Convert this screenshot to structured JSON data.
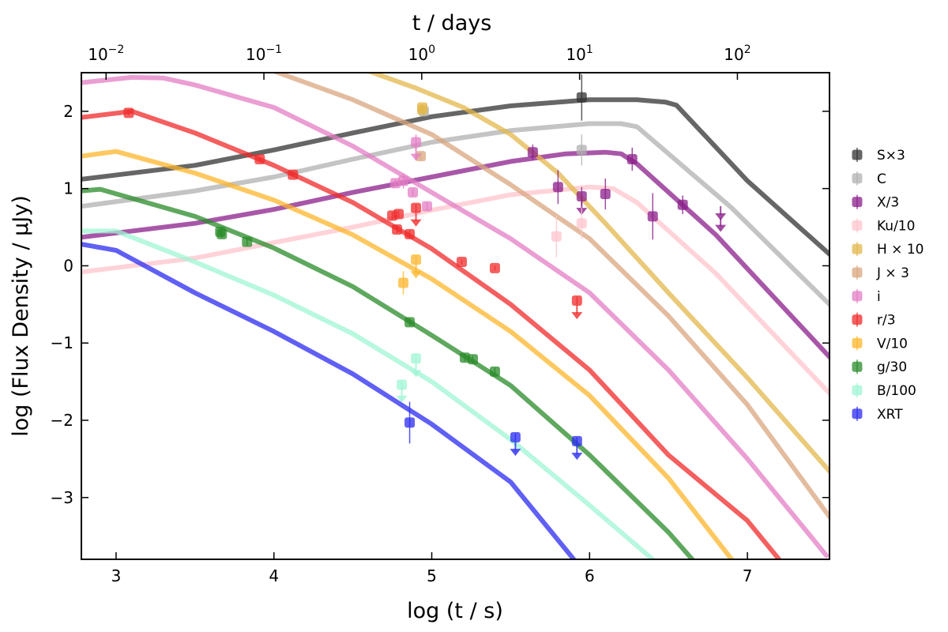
{
  "chart_data": {
    "type": "line",
    "xlabel": "log (t / s)",
    "ylabel": "log (Flux Density / μJy)",
    "top_xlabel": "t / days",
    "xlim": [
      2.78,
      7.52
    ],
    "ylim": [
      -3.8,
      2.5
    ],
    "x_ticks": [
      3,
      4,
      5,
      6,
      7
    ],
    "y_ticks": [
      -3,
      -2,
      -1,
      0,
      1,
      2
    ],
    "x_tick_labels": [
      "3",
      "4",
      "5",
      "6",
      "7"
    ],
    "y_tick_labels": [
      "−3",
      "−2",
      "−1",
      "0",
      "1",
      "2"
    ],
    "top_ticks": [
      {
        "value_days": 0.01,
        "base": "10",
        "exp": "−2"
      },
      {
        "value_days": 0.1,
        "base": "10",
        "exp": "−1"
      },
      {
        "value_days": 1,
        "base": "10",
        "exp": "0"
      },
      {
        "value_days": 10,
        "base": "10",
        "exp": "1"
      },
      {
        "value_days": 100,
        "base": "10",
        "exp": "2"
      }
    ],
    "legend_position": "outside-right",
    "series": [
      {
        "name": "S×3",
        "color": "#333333",
        "model": [
          [
            2.78,
            1.12
          ],
          [
            3.5,
            1.3
          ],
          [
            4.0,
            1.5
          ],
          [
            4.5,
            1.72
          ],
          [
            5.0,
            1.93
          ],
          [
            5.5,
            2.07
          ],
          [
            6.0,
            2.15
          ],
          [
            6.3,
            2.15
          ],
          [
            6.48,
            2.12
          ],
          [
            6.55,
            2.08
          ],
          [
            7.0,
            1.1
          ],
          [
            7.52,
            0.15
          ]
        ],
        "points": [
          {
            "x": 5.95,
            "y": 2.18,
            "err": 0.3
          }
        ]
      },
      {
        "name": "C",
        "color": "#b0b0b0",
        "model": [
          [
            2.78,
            0.77
          ],
          [
            3.5,
            0.97
          ],
          [
            4.0,
            1.15
          ],
          [
            4.5,
            1.38
          ],
          [
            5.0,
            1.6
          ],
          [
            5.5,
            1.75
          ],
          [
            6.0,
            1.84
          ],
          [
            6.2,
            1.84
          ],
          [
            6.3,
            1.8
          ],
          [
            6.9,
            0.75
          ],
          [
            7.52,
            -0.5
          ]
        ],
        "points": [
          {
            "x": 4.95,
            "y": 2.0,
            "err": 0.05
          },
          {
            "x": 5.95,
            "y": 1.5,
            "err": 0.2
          }
        ]
      },
      {
        "name": "X/3",
        "color": "#8b1f8b",
        "model": [
          [
            2.78,
            0.37
          ],
          [
            3.5,
            0.55
          ],
          [
            4.0,
            0.73
          ],
          [
            4.5,
            0.95
          ],
          [
            5.0,
            1.15
          ],
          [
            5.5,
            1.35
          ],
          [
            5.85,
            1.45
          ],
          [
            6.1,
            1.47
          ],
          [
            6.2,
            1.45
          ],
          [
            6.3,
            1.32
          ],
          [
            6.8,
            0.4
          ],
          [
            7.52,
            -1.18
          ]
        ],
        "points": [
          {
            "x": 5.64,
            "y": 1.47,
            "err": 0.1
          },
          {
            "x": 5.8,
            "y": 1.02,
            "err": 0.22
          },
          {
            "x": 5.95,
            "y": 0.9,
            "err": 0.12
          },
          {
            "x": 5.95,
            "y": 0.75,
            "upper": true
          },
          {
            "x": 6.1,
            "y": 0.93,
            "err": 0.2
          },
          {
            "x": 6.27,
            "y": 1.38,
            "err": 0.15
          },
          {
            "x": 6.4,
            "y": 0.64,
            "err": 0.3
          },
          {
            "x": 6.59,
            "y": 0.79,
            "err": 0.12
          },
          {
            "x": 6.83,
            "y": 0.68,
            "upper": true
          },
          {
            "x": 6.83,
            "y": 0.53,
            "upper": true
          }
        ]
      },
      {
        "name": "Ku/10",
        "color": "#ffc4cc",
        "model": [
          [
            2.78,
            -0.08
          ],
          [
            3.5,
            0.1
          ],
          [
            4.0,
            0.3
          ],
          [
            4.5,
            0.5
          ],
          [
            5.0,
            0.72
          ],
          [
            5.5,
            0.92
          ],
          [
            6.0,
            1.02
          ],
          [
            6.15,
            1.0
          ],
          [
            6.3,
            0.82
          ],
          [
            6.8,
            -0.1
          ],
          [
            7.52,
            -1.65
          ]
        ],
        "points": [
          {
            "x": 5.79,
            "y": 0.38,
            "err": 0.27
          },
          {
            "x": 5.95,
            "y": 0.55,
            "err": 0.2
          }
        ]
      },
      {
        "name": "H × 10",
        "color": "#e3b74b",
        "model": [
          [
            4.6,
            2.52
          ],
          [
            4.9,
            2.3
          ],
          [
            5.2,
            2.05
          ],
          [
            5.5,
            1.7
          ],
          [
            5.8,
            1.2
          ],
          [
            6.1,
            0.55
          ],
          [
            6.5,
            -0.35
          ],
          [
            7.0,
            -1.45
          ],
          [
            7.52,
            -2.66
          ]
        ],
        "points": [
          {
            "x": 4.94,
            "y": 2.02,
            "err": 0.07
          },
          {
            "x": 4.94,
            "y": 2.05,
            "err": 0.05
          }
        ]
      },
      {
        "name": "J × 3",
        "color": "#d9a57f",
        "model": [
          [
            4.0,
            2.52
          ],
          [
            4.5,
            2.15
          ],
          [
            5.0,
            1.7
          ],
          [
            5.5,
            1.05
          ],
          [
            6.0,
            0.35
          ],
          [
            6.5,
            -0.65
          ],
          [
            7.0,
            -1.8
          ],
          [
            7.52,
            -3.25
          ]
        ],
        "points": [
          {
            "x": 4.93,
            "y": 1.42,
            "err": 0.05
          }
        ]
      },
      {
        "name": "i",
        "color": "#e37ec4",
        "model": [
          [
            2.78,
            2.37
          ],
          [
            3.1,
            2.44
          ],
          [
            3.3,
            2.43
          ],
          [
            3.5,
            2.34
          ],
          [
            4.0,
            2.05
          ],
          [
            4.5,
            1.55
          ],
          [
            5.0,
            0.95
          ],
          [
            5.5,
            0.35
          ],
          [
            6.0,
            -0.35
          ],
          [
            6.5,
            -1.35
          ],
          [
            7.0,
            -2.5
          ],
          [
            7.5,
            -3.75
          ]
        ],
        "points": [
          {
            "x": 4.77,
            "y": 1.07,
            "err": 0.05
          },
          {
            "x": 4.82,
            "y": 1.1,
            "err": 0.1
          },
          {
            "x": 4.88,
            "y": 0.95,
            "err": 0.05
          },
          {
            "x": 4.9,
            "y": 1.6,
            "err": 0.1
          },
          {
            "x": 4.9,
            "y": 1.45,
            "upper": true
          },
          {
            "x": 4.97,
            "y": 0.77,
            "err": 0.05
          }
        ]
      },
      {
        "name": "r/3",
        "color": "#f02a2a",
        "model": [
          [
            2.78,
            1.92
          ],
          [
            3.1,
            2.0
          ],
          [
            3.5,
            1.72
          ],
          [
            4.0,
            1.3
          ],
          [
            4.5,
            0.82
          ],
          [
            5.0,
            0.22
          ],
          [
            5.5,
            -0.5
          ],
          [
            6.0,
            -1.35
          ],
          [
            6.5,
            -2.45
          ],
          [
            7.0,
            -3.3
          ],
          [
            7.2,
            -3.8
          ]
        ],
        "points": [
          {
            "x": 3.08,
            "y": 1.98,
            "err": 0.03
          },
          {
            "x": 3.91,
            "y": 1.38,
            "err": 0.03
          },
          {
            "x": 4.12,
            "y": 1.18,
            "err": 0.03
          },
          {
            "x": 4.75,
            "y": 0.65,
            "err": 0.05
          },
          {
            "x": 4.79,
            "y": 0.67,
            "err": 0.05
          },
          {
            "x": 4.78,
            "y": 0.47,
            "err": 0.05
          },
          {
            "x": 4.86,
            "y": 0.41,
            "err": 0.05
          },
          {
            "x": 4.9,
            "y": 0.75,
            "err": 0.05
          },
          {
            "x": 4.9,
            "y": 0.6,
            "upper": true
          },
          {
            "x": 5.19,
            "y": 0.05,
            "err": 0.03
          },
          {
            "x": 5.4,
            "y": -0.03,
            "err": 0.03
          },
          {
            "x": 5.92,
            "y": -0.45,
            "err": 0.05
          },
          {
            "x": 5.92,
            "y": -0.6,
            "upper": true
          }
        ]
      },
      {
        "name": "V/10",
        "color": "#fdb62b",
        "model": [
          [
            2.78,
            1.42
          ],
          [
            3.0,
            1.48
          ],
          [
            3.5,
            1.2
          ],
          [
            4.0,
            0.85
          ],
          [
            4.5,
            0.4
          ],
          [
            5.0,
            -0.17
          ],
          [
            5.5,
            -0.85
          ],
          [
            6.0,
            -1.68
          ],
          [
            6.5,
            -2.75
          ],
          [
            6.9,
            -3.8
          ]
        ],
        "points": [
          {
            "x": 4.82,
            "y": -0.22,
            "err": 0.15
          },
          {
            "x": 4.9,
            "y": 0.08,
            "err": 0.06
          },
          {
            "x": 4.9,
            "y": -0.07,
            "upper": true
          }
        ]
      },
      {
        "name": "g/30",
        "color": "#2a8b2a",
        "model": [
          [
            2.78,
            0.97
          ],
          [
            2.9,
            0.99
          ],
          [
            3.5,
            0.64
          ],
          [
            4.0,
            0.23
          ],
          [
            4.5,
            -0.27
          ],
          [
            5.0,
            -0.9
          ],
          [
            5.5,
            -1.55
          ],
          [
            6.0,
            -2.45
          ],
          [
            6.5,
            -3.45
          ],
          [
            6.65,
            -3.8
          ]
        ],
        "points": [
          {
            "x": 3.66,
            "y": 0.44,
            "err": 0.05
          },
          {
            "x": 3.67,
            "y": 0.41,
            "err": 0.05
          },
          {
            "x": 3.83,
            "y": 0.31,
            "err": 0.05
          },
          {
            "x": 4.86,
            "y": -0.73,
            "err": 0.05
          },
          {
            "x": 5.21,
            "y": -1.19,
            "err": 0.05
          },
          {
            "x": 5.26,
            "y": -1.21,
            "err": 0.05
          },
          {
            "x": 5.4,
            "y": -1.37,
            "err": 0.05
          }
        ]
      },
      {
        "name": "B/100",
        "color": "#9ff5d4",
        "model": [
          [
            2.78,
            0.45
          ],
          [
            3.0,
            0.45
          ],
          [
            3.5,
            0.05
          ],
          [
            4.0,
            -0.38
          ],
          [
            4.5,
            -0.88
          ],
          [
            5.0,
            -1.5
          ],
          [
            5.5,
            -2.25
          ],
          [
            6.0,
            -3.1
          ],
          [
            6.4,
            -3.8
          ]
        ],
        "points": [
          {
            "x": 4.81,
            "y": -1.54,
            "err": 0.05
          },
          {
            "x": 4.81,
            "y": -1.68,
            "upper": true
          },
          {
            "x": 4.9,
            "y": -1.2,
            "err": 0.06
          },
          {
            "x": 4.9,
            "y": -1.35,
            "upper": true
          }
        ]
      },
      {
        "name": "XRT",
        "color": "#2b2bf0",
        "model": [
          [
            2.78,
            0.28
          ],
          [
            3.0,
            0.2
          ],
          [
            3.5,
            -0.35
          ],
          [
            4.0,
            -0.85
          ],
          [
            4.5,
            -1.4
          ],
          [
            5.0,
            -2.05
          ],
          [
            5.5,
            -2.8
          ],
          [
            5.9,
            -3.8
          ]
        ],
        "points": [
          {
            "x": 4.86,
            "y": -2.03,
            "err": 0.27
          },
          {
            "x": 5.53,
            "y": -2.22,
            "err": 0.05
          },
          {
            "x": 5.53,
            "y": -2.37,
            "upper": true
          },
          {
            "x": 5.92,
            "y": -2.27,
            "err": 0.05
          },
          {
            "x": 5.92,
            "y": -2.42,
            "upper": true
          }
        ]
      }
    ]
  }
}
